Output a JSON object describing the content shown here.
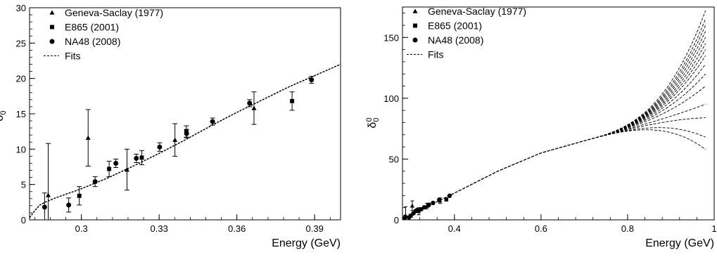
{
  "chart_data": [
    {
      "type": "scatter",
      "xlabel": "Energy (GeV)",
      "ylabel": "δ",
      "ylabel_sub": "0",
      "ylabel_sup": "0",
      "xlim": [
        0.28,
        0.4
      ],
      "ylim": [
        0,
        30
      ],
      "xticks": [
        0.3,
        0.33,
        0.36,
        0.39
      ],
      "xtick_labels": [
        "0.3",
        "0.33",
        "0.36",
        "0.39"
      ],
      "yticks": [
        0,
        5,
        10,
        15,
        20,
        25,
        30
      ],
      "ytick_labels": [
        "0",
        "5",
        "10",
        "15",
        "20",
        "25",
        "30"
      ],
      "legend_position": "top-left",
      "series": [
        {
          "name": "Geneva-Saclay (1977)",
          "marker": "triangle",
          "points": [
            [
              0.2872,
              3.5,
              7.3
            ],
            [
              0.3026,
              11.6,
              4.0
            ],
            [
              0.3176,
              7.1,
              2.9
            ],
            [
              0.3361,
              11.3,
              2.3
            ],
            [
              0.3666,
              15.8,
              2.3
            ]
          ]
        },
        {
          "name": "E865 (2001)",
          "marker": "square",
          "points": [
            [
              0.2992,
              3.4,
              1.3
            ],
            [
              0.3107,
              7.2,
              1.1
            ],
            [
              0.3233,
              8.8,
              1.0
            ],
            [
              0.3405,
              12.5,
              0.8
            ],
            [
              0.3813,
              16.8,
              1.3
            ]
          ]
        },
        {
          "name": "NA48 (2008)",
          "marker": "circle",
          "points": [
            [
              0.2858,
              1.8,
              2.0
            ],
            [
              0.2951,
              2.1,
              1.0
            ],
            [
              0.3053,
              5.4,
              0.7
            ],
            [
              0.3133,
              8.0,
              0.6
            ],
            [
              0.3212,
              8.7,
              0.6
            ],
            [
              0.3302,
              10.3,
              0.6
            ],
            [
              0.3406,
              12.2,
              0.6
            ],
            [
              0.3506,
              13.9,
              0.5
            ],
            [
              0.3649,
              16.5,
              0.5
            ],
            [
              0.3888,
              19.8,
              0.5
            ]
          ]
        },
        {
          "name": "Fits",
          "style": "dashed",
          "points": [
            [
              0.28,
              0.3
            ],
            [
              0.282,
              1.3
            ],
            [
              0.284,
              2.1
            ],
            [
              0.286,
              2.5
            ],
            [
              0.29,
              3.1
            ],
            [
              0.3,
              4.4
            ],
            [
              0.31,
              5.9
            ],
            [
              0.32,
              7.6
            ],
            [
              0.33,
              9.4
            ],
            [
              0.34,
              11.3
            ],
            [
              0.35,
              13.3
            ],
            [
              0.36,
              15.2
            ],
            [
              0.37,
              17.0
            ],
            [
              0.38,
              18.8
            ],
            [
              0.39,
              20.4
            ],
            [
              0.4,
              22.0
            ]
          ]
        }
      ]
    },
    {
      "type": "line",
      "xlabel": "Energy (GeV)",
      "ylabel": "δ",
      "ylabel_sub": "0",
      "ylabel_sup": "0",
      "xlim": [
        0.28,
        1.0
      ],
      "ylim": [
        0,
        175
      ],
      "xticks": [
        0.4,
        0.6,
        0.8,
        1.0
      ],
      "xtick_labels": [
        "0.4",
        "0.6",
        "0.8",
        "1"
      ],
      "yticks": [
        0,
        50,
        100,
        150
      ],
      "ytick_labels": [
        "0",
        "50",
        "100",
        "150"
      ],
      "legend_position": "top-left",
      "series": [
        {
          "name": "Geneva-Saclay (1977)",
          "marker": "triangle",
          "points": [
            [
              0.2872,
              3.5,
              7.3
            ],
            [
              0.3026,
              11.6,
              4.0
            ],
            [
              0.3176,
              7.1,
              2.9
            ],
            [
              0.3361,
              11.3,
              2.3
            ],
            [
              0.3666,
              15.8,
              2.3
            ]
          ]
        },
        {
          "name": "E865 (2001)",
          "marker": "square",
          "points": [
            [
              0.2992,
              3.4,
              1.3
            ],
            [
              0.3107,
              7.2,
              1.1
            ],
            [
              0.3233,
              8.8,
              1.0
            ],
            [
              0.3405,
              12.5,
              0.8
            ],
            [
              0.3813,
              16.8,
              1.3
            ]
          ]
        },
        {
          "name": "NA48 (2008)",
          "marker": "circle",
          "points": [
            [
              0.2858,
              1.8,
              2.0
            ],
            [
              0.2951,
              2.1,
              1.0
            ],
            [
              0.3053,
              5.4,
              0.7
            ],
            [
              0.3133,
              8.0,
              0.6
            ],
            [
              0.3212,
              8.7,
              0.6
            ],
            [
              0.3302,
              10.3,
              0.6
            ],
            [
              0.3406,
              12.2,
              0.6
            ],
            [
              0.3506,
              13.9,
              0.5
            ],
            [
              0.3649,
              16.5,
              0.5
            ],
            [
              0.3888,
              19.8,
              0.5
            ]
          ]
        },
        {
          "name": "Fits",
          "style": "dashed",
          "base": [
            [
              0.28,
              0
            ],
            [
              0.3,
              4.4
            ],
            [
              0.4,
              22
            ],
            [
              0.5,
              40
            ],
            [
              0.6,
              55
            ],
            [
              0.7,
              65
            ]
          ],
          "end_values_at_0_98": [
            58,
            68,
            84,
            95,
            110,
            120,
            128,
            135,
            140,
            145,
            150,
            155,
            160,
            165,
            172
          ]
        }
      ]
    }
  ]
}
